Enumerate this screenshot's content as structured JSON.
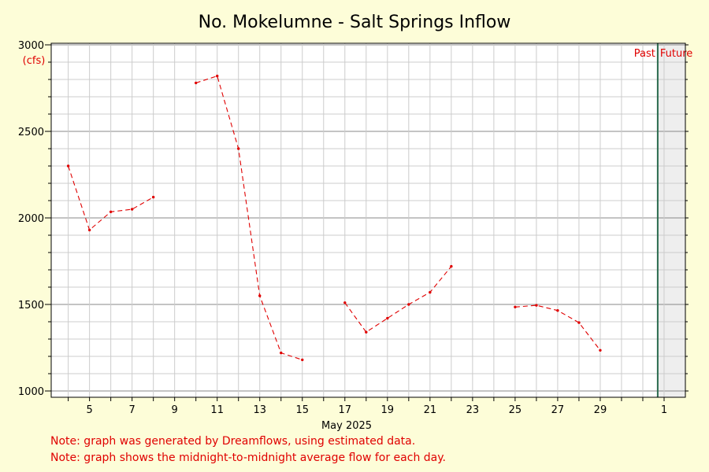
{
  "chart_data": {
    "type": "line",
    "title": "No. Mokelumne - Salt Springs Inflow",
    "ylabel": "(cfs)",
    "xlabel": "May 2025",
    "ylim": [
      1000,
      3000
    ],
    "yticks": [
      1000,
      1500,
      2000,
      2500,
      3000
    ],
    "xticks": [
      {
        "day": 5,
        "label": "5"
      },
      {
        "day": 7,
        "label": "7"
      },
      {
        "day": 9,
        "label": "9"
      },
      {
        "day": 11,
        "label": "11"
      },
      {
        "day": 13,
        "label": "13"
      },
      {
        "day": 15,
        "label": "15"
      },
      {
        "day": 17,
        "label": "17"
      },
      {
        "day": 19,
        "label": "19"
      },
      {
        "day": 21,
        "label": "21"
      },
      {
        "day": 23,
        "label": "23"
      },
      {
        "day": 25,
        "label": "25"
      },
      {
        "day": 27,
        "label": "27"
      },
      {
        "day": 29,
        "label": "29"
      },
      {
        "day": 32,
        "label": "1"
      }
    ],
    "grid": true,
    "past_label": "Past",
    "future_label": "Future",
    "series": [
      {
        "color": "#e00000",
        "segments": [
          [
            {
              "x": 4,
              "y": 2300
            },
            {
              "x": 5,
              "y": 1930
            },
            {
              "x": 6,
              "y": 2035
            },
            {
              "x": 7,
              "y": 2050
            },
            {
              "x": 8,
              "y": 2120
            }
          ],
          [
            {
              "x": 10,
              "y": 2780
            },
            {
              "x": 11,
              "y": 2820
            },
            {
              "x": 12,
              "y": 2400
            },
            {
              "x": 13,
              "y": 1550
            },
            {
              "x": 14,
              "y": 1220
            },
            {
              "x": 15,
              "y": 1180
            }
          ],
          [
            {
              "x": 17,
              "y": 1510
            },
            {
              "x": 18,
              "y": 1340
            },
            {
              "x": 19,
              "y": 1420
            },
            {
              "x": 20,
              "y": 1500
            },
            {
              "x": 21,
              "y": 1570
            },
            {
              "x": 22,
              "y": 1720
            }
          ],
          [
            {
              "x": 25,
              "y": 1485
            },
            {
              "x": 26,
              "y": 1495
            },
            {
              "x": 27,
              "y": 1465
            },
            {
              "x": 28,
              "y": 1395
            },
            {
              "x": 29,
              "y": 1235
            }
          ]
        ]
      }
    ]
  },
  "notes": [
    "Note: graph was generated by Dreamflows, using estimated data.",
    "Note: graph shows the midnight-to-midnight average flow for each day."
  ]
}
